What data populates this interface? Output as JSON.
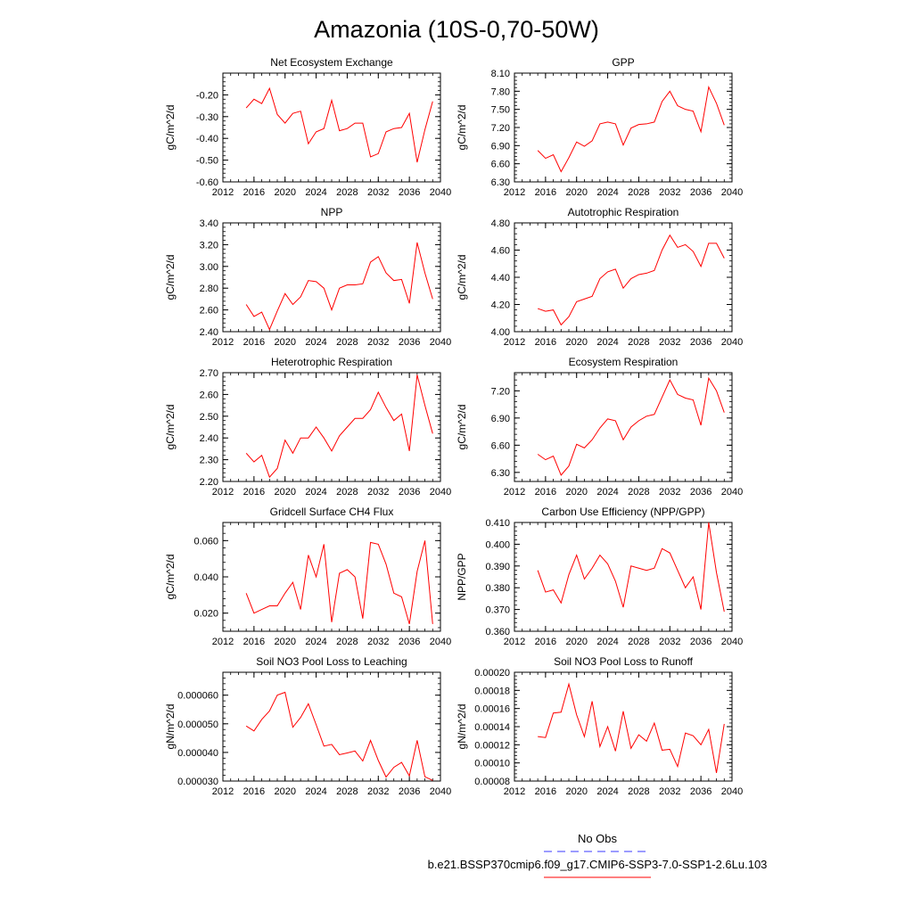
{
  "title": "Amazonia (10S-0,70-50W)",
  "legend": {
    "items": [
      {
        "label": "No Obs",
        "color": "#3a3aff",
        "dash": true
      },
      {
        "label": "b.e21.BSSP370cmip6.f09_g17.CMIP6-SSP3-7.0-SSP1-2.6Lu.103",
        "color": "#ff0000",
        "dash": false
      }
    ]
  },
  "chart_data": [
    {
      "type": "line",
      "title": "Net Ecosystem Exchange",
      "ylabel": "gC/m^2/d",
      "xlim": [
        2012,
        2040
      ],
      "xticks": [
        "2012",
        "2016",
        "2020",
        "2024",
        "2028",
        "2032",
        "2036",
        "2040"
      ],
      "ylim": [
        -0.6,
        -0.1
      ],
      "yticks": [
        "-0.60",
        "-0.50",
        "-0.40",
        "-0.30",
        "-0.20"
      ],
      "x": [
        2015,
        2016,
        2017,
        2018,
        2019,
        2020,
        2021,
        2022,
        2023,
        2024,
        2025,
        2026,
        2027,
        2028,
        2029,
        2030,
        2031,
        2032,
        2033,
        2034,
        2035,
        2036,
        2037,
        2038,
        2039
      ],
      "series": [
        {
          "color": "#ff0000",
          "values": [
            -0.26,
            -0.22,
            -0.24,
            -0.17,
            -0.29,
            -0.33,
            -0.285,
            -0.275,
            -0.425,
            -0.37,
            -0.355,
            -0.225,
            -0.365,
            -0.355,
            -0.33,
            -0.33,
            -0.485,
            -0.47,
            -0.37,
            -0.355,
            -0.35,
            -0.285,
            -0.51,
            -0.36,
            -0.23
          ]
        }
      ]
    },
    {
      "type": "line",
      "title": "GPP",
      "ylabel": "gC/m^2/d",
      "xlim": [
        2012,
        2040
      ],
      "xticks": [
        "2012",
        "2016",
        "2020",
        "2024",
        "2028",
        "2032",
        "2036",
        "2040"
      ],
      "ylim": [
        6.3,
        8.1
      ],
      "yticks": [
        "6.30",
        "6.60",
        "6.90",
        "7.20",
        "7.50",
        "7.80",
        "8.10"
      ],
      "x": [
        2015,
        2016,
        2017,
        2018,
        2019,
        2020,
        2021,
        2022,
        2023,
        2024,
        2025,
        2026,
        2027,
        2028,
        2029,
        2030,
        2031,
        2032,
        2033,
        2034,
        2035,
        2036,
        2037,
        2038,
        2039
      ],
      "series": [
        {
          "color": "#ff0000",
          "values": [
            6.82,
            6.69,
            6.75,
            6.47,
            6.7,
            6.96,
            6.89,
            6.98,
            7.26,
            7.29,
            7.26,
            6.91,
            7.19,
            7.25,
            7.26,
            7.29,
            7.63,
            7.8,
            7.56,
            7.5,
            7.47,
            7.13,
            7.87,
            7.6,
            7.24
          ]
        }
      ]
    },
    {
      "type": "line",
      "title": "NPP",
      "ylabel": "gC/m^2/d",
      "xlim": [
        2012,
        2040
      ],
      "xticks": [
        "2012",
        "2016",
        "2020",
        "2024",
        "2028",
        "2032",
        "2036",
        "2040"
      ],
      "ylim": [
        2.4,
        3.4
      ],
      "yticks": [
        "2.40",
        "2.60",
        "2.80",
        "3.00",
        "3.20",
        "3.40"
      ],
      "x": [
        2015,
        2016,
        2017,
        2018,
        2019,
        2020,
        2021,
        2022,
        2023,
        2024,
        2025,
        2026,
        2027,
        2028,
        2029,
        2030,
        2031,
        2032,
        2033,
        2034,
        2035,
        2036,
        2037,
        2038,
        2039
      ],
      "series": [
        {
          "color": "#ff0000",
          "values": [
            2.65,
            2.54,
            2.58,
            2.42,
            2.59,
            2.75,
            2.65,
            2.72,
            2.87,
            2.86,
            2.8,
            2.6,
            2.8,
            2.83,
            2.83,
            2.84,
            3.04,
            3.09,
            2.94,
            2.87,
            2.88,
            2.66,
            3.22,
            2.94,
            2.7
          ]
        }
      ]
    },
    {
      "type": "line",
      "title": "Autotrophic Respiration",
      "ylabel": "gC/m^2/d",
      "xlim": [
        2012,
        2040
      ],
      "xticks": [
        "2012",
        "2016",
        "2020",
        "2024",
        "2028",
        "2032",
        "2036",
        "2040"
      ],
      "ylim": [
        4.0,
        4.8
      ],
      "yticks": [
        "4.00",
        "4.20",
        "4.40",
        "4.60",
        "4.80"
      ],
      "x": [
        2015,
        2016,
        2017,
        2018,
        2019,
        2020,
        2021,
        2022,
        2023,
        2024,
        2025,
        2026,
        2027,
        2028,
        2029,
        2030,
        2031,
        2032,
        2033,
        2034,
        2035,
        2036,
        2037,
        2038,
        2039
      ],
      "series": [
        {
          "color": "#ff0000",
          "values": [
            4.17,
            4.15,
            4.16,
            4.05,
            4.11,
            4.22,
            4.24,
            4.26,
            4.39,
            4.44,
            4.46,
            4.32,
            4.39,
            4.42,
            4.43,
            4.45,
            4.6,
            4.71,
            4.62,
            4.64,
            4.59,
            4.48,
            4.65,
            4.65,
            4.54
          ]
        }
      ]
    },
    {
      "type": "line",
      "title": "Heterotrophic Respiration",
      "ylabel": "gC/m^2/d",
      "xlim": [
        2012,
        2040
      ],
      "xticks": [
        "2012",
        "2016",
        "2020",
        "2024",
        "2028",
        "2032",
        "2036",
        "2040"
      ],
      "ylim": [
        2.2,
        2.7
      ],
      "yticks": [
        "2.20",
        "2.30",
        "2.40",
        "2.50",
        "2.60",
        "2.70"
      ],
      "x": [
        2015,
        2016,
        2017,
        2018,
        2019,
        2020,
        2021,
        2022,
        2023,
        2024,
        2025,
        2026,
        2027,
        2028,
        2029,
        2030,
        2031,
        2032,
        2033,
        2034,
        2035,
        2036,
        2037,
        2038,
        2039
      ],
      "series": [
        {
          "color": "#ff0000",
          "values": [
            2.33,
            2.29,
            2.32,
            2.22,
            2.26,
            2.39,
            2.33,
            2.4,
            2.4,
            2.45,
            2.4,
            2.34,
            2.41,
            2.45,
            2.49,
            2.49,
            2.53,
            2.61,
            2.54,
            2.48,
            2.51,
            2.34,
            2.69,
            2.55,
            2.42
          ]
        }
      ]
    },
    {
      "type": "line",
      "title": "Ecosystem Respiration",
      "ylabel": "gC/m^2/d",
      "xlim": [
        2012,
        2040
      ],
      "xticks": [
        "2012",
        "2016",
        "2020",
        "2024",
        "2028",
        "2032",
        "2036",
        "2040"
      ],
      "ylim": [
        6.2,
        7.4
      ],
      "yticks": [
        "6.30",
        "6.60",
        "6.90",
        "7.20"
      ],
      "x": [
        2015,
        2016,
        2017,
        2018,
        2019,
        2020,
        2021,
        2022,
        2023,
        2024,
        2025,
        2026,
        2027,
        2028,
        2029,
        2030,
        2031,
        2032,
        2033,
        2034,
        2035,
        2036,
        2037,
        2038,
        2039
      ],
      "series": [
        {
          "color": "#ff0000",
          "values": [
            6.5,
            6.44,
            6.48,
            6.27,
            6.37,
            6.61,
            6.57,
            6.66,
            6.79,
            6.89,
            6.87,
            6.66,
            6.8,
            6.87,
            6.92,
            6.94,
            7.13,
            7.32,
            7.16,
            7.12,
            7.1,
            6.82,
            7.34,
            7.2,
            6.96
          ]
        }
      ]
    },
    {
      "type": "line",
      "title": "Gridcell Surface CH4 Flux",
      "ylabel": "gC/m^2/d",
      "xlim": [
        2012,
        2040
      ],
      "xticks": [
        "2012",
        "2016",
        "2020",
        "2024",
        "2028",
        "2032",
        "2036",
        "2040"
      ],
      "ylim": [
        0.01,
        0.07
      ],
      "yticks": [
        "0.020",
        "0.040",
        "0.060"
      ],
      "x": [
        2015,
        2016,
        2017,
        2018,
        2019,
        2020,
        2021,
        2022,
        2023,
        2024,
        2025,
        2026,
        2027,
        2028,
        2029,
        2030,
        2031,
        2032,
        2033,
        2034,
        2035,
        2036,
        2037,
        2038,
        2039
      ],
      "series": [
        {
          "color": "#ff0000",
          "values": [
            0.031,
            0.02,
            0.022,
            0.024,
            0.024,
            0.031,
            0.037,
            0.022,
            0.052,
            0.04,
            0.058,
            0.015,
            0.042,
            0.044,
            0.04,
            0.017,
            0.059,
            0.058,
            0.047,
            0.031,
            0.029,
            0.014,
            0.043,
            0.06,
            0.014
          ]
        }
      ]
    },
    {
      "type": "line",
      "title": "Carbon Use Efficiency (NPP/GPP)",
      "ylabel": "NPP/GPP",
      "xlim": [
        2012,
        2040
      ],
      "xticks": [
        "2012",
        "2016",
        "2020",
        "2024",
        "2028",
        "2032",
        "2036",
        "2040"
      ],
      "ylim": [
        0.36,
        0.41
      ],
      "yticks": [
        "0.360",
        "0.370",
        "0.380",
        "0.390",
        "0.400",
        "0.410"
      ],
      "x": [
        2015,
        2016,
        2017,
        2018,
        2019,
        2020,
        2021,
        2022,
        2023,
        2024,
        2025,
        2026,
        2027,
        2028,
        2029,
        2030,
        2031,
        2032,
        2033,
        2034,
        2035,
        2036,
        2037,
        2038,
        2039
      ],
      "series": [
        {
          "color": "#ff0000",
          "values": [
            0.388,
            0.378,
            0.379,
            0.373,
            0.386,
            0.395,
            0.384,
            0.389,
            0.395,
            0.391,
            0.383,
            0.371,
            0.39,
            0.389,
            0.388,
            0.389,
            0.398,
            0.396,
            0.388,
            0.38,
            0.385,
            0.37,
            0.41,
            0.387,
            0.369
          ]
        }
      ]
    },
    {
      "type": "line",
      "title": "Soil NO3 Pool Loss to Leaching",
      "ylabel": "gN/m^2/d",
      "xlim": [
        2012,
        2040
      ],
      "xticks": [
        "2012",
        "2016",
        "2020",
        "2024",
        "2028",
        "2032",
        "2036",
        "2040"
      ],
      "ylim": [
        3e-05,
        6.8e-05
      ],
      "yticks": [
        "0.000030",
        "0.000040",
        "0.000050",
        "0.000060"
      ],
      "x": [
        2015,
        2016,
        2017,
        2018,
        2019,
        2020,
        2021,
        2022,
        2023,
        2024,
        2025,
        2026,
        2027,
        2028,
        2029,
        2030,
        2031,
        2032,
        2033,
        2034,
        2035,
        2036,
        2037,
        2038,
        2039
      ],
      "series": [
        {
          "color": "#ff0000",
          "values": [
            4.92e-05,
            4.75e-05,
            5.15e-05,
            5.45e-05,
            6e-05,
            6.1e-05,
            4.88e-05,
            5.22e-05,
            5.7e-05,
            4.97e-05,
            4.22e-05,
            4.28e-05,
            3.92e-05,
            3.98e-05,
            4.05e-05,
            3.7e-05,
            4.42e-05,
            3.72e-05,
            3.14e-05,
            3.48e-05,
            3.65e-05,
            3.18e-05,
            4.42e-05,
            3.15e-05,
            3.02e-05
          ]
        }
      ]
    },
    {
      "type": "line",
      "title": "Soil NO3 Pool Loss to Runoff",
      "ylabel": "gN/m^2/d",
      "xlim": [
        2012,
        2040
      ],
      "xticks": [
        "2012",
        "2016",
        "2020",
        "2024",
        "2028",
        "2032",
        "2036",
        "2040"
      ],
      "ylim": [
        8e-05,
        0.0002
      ],
      "yticks": [
        "0.00008",
        "0.00010",
        "0.00012",
        "0.00014",
        "0.00016",
        "0.00018",
        "0.00020"
      ],
      "x": [
        2015,
        2016,
        2017,
        2018,
        2019,
        2020,
        2021,
        2022,
        2023,
        2024,
        2025,
        2026,
        2027,
        2028,
        2029,
        2030,
        2031,
        2032,
        2033,
        2034,
        2035,
        2036,
        2037,
        2038,
        2039
      ],
      "series": [
        {
          "color": "#ff0000",
          "values": [
            0.000129,
            0.000128,
            0.000155,
            0.000156,
            0.000187,
            0.000153,
            0.000129,
            0.000168,
            0.000118,
            0.00014,
            0.000113,
            0.000157,
            0.000116,
            0.000131,
            0.000124,
            0.000144,
            0.000114,
            0.000115,
            9.6e-05,
            0.000133,
            0.00013,
            0.00012,
            0.000137,
            8.9e-05,
            0.000143
          ]
        }
      ]
    }
  ]
}
